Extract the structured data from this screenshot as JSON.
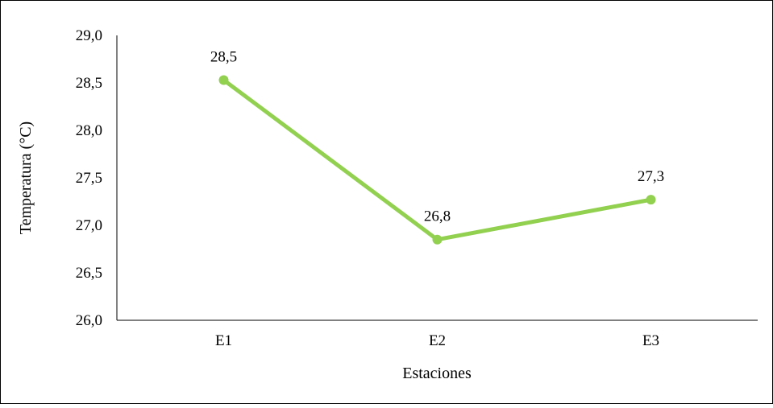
{
  "chart_data": {
    "type": "line",
    "title": "",
    "xlabel": "Estaciones",
    "ylabel": "Temperatura  (°C)",
    "categories": [
      "E1",
      "E2",
      "E3"
    ],
    "series": [
      {
        "values": [
          28.53,
          26.85,
          27.27
        ],
        "data_labels": [
          "28,5",
          "26,8",
          "27,3"
        ],
        "color": "#92d050"
      }
    ],
    "ylim": [
      26.0,
      29.0
    ],
    "y_ticks": [
      "26,0",
      "26,5",
      "27,0",
      "27,5",
      "28,0",
      "28,5",
      "29,0"
    ],
    "grid": false,
    "legend": "none"
  }
}
